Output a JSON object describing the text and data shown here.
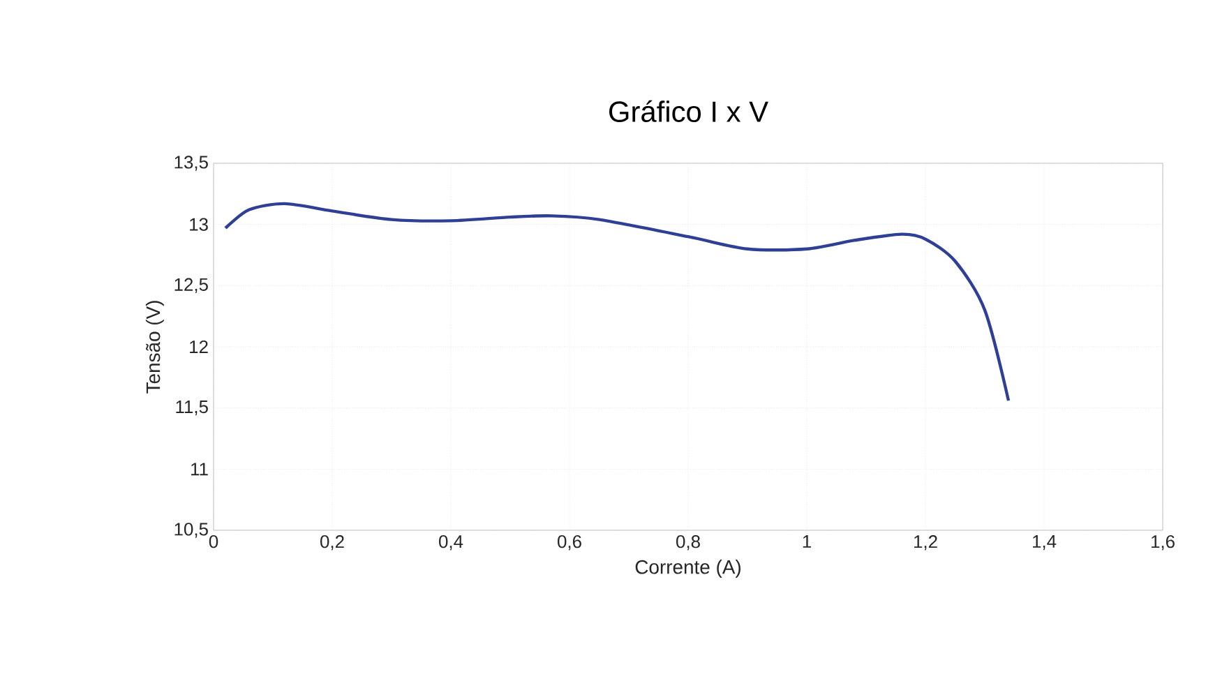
{
  "chart_data": {
    "type": "line",
    "title": "Gráfico  I x V",
    "xlabel": "Corrente (A)",
    "ylabel": "Tensão (V)",
    "series": [
      {
        "color": "#2e3f96",
        "x": [
          0.02,
          0.06,
          0.12,
          0.2,
          0.3,
          0.4,
          0.5,
          0.57,
          0.65,
          0.8,
          0.9,
          1.0,
          1.08,
          1.16,
          1.2,
          1.25,
          1.3,
          1.34
        ],
        "values": [
          12.97,
          13.12,
          13.17,
          13.11,
          13.04,
          13.03,
          13.06,
          13.07,
          13.04,
          12.9,
          12.8,
          12.8,
          12.87,
          12.92,
          12.88,
          12.7,
          12.3,
          11.56
        ]
      }
    ],
    "xlim": [
      0,
      1.6
    ],
    "xticks": [
      0,
      {
        "value": 0.2,
        "label": "0,2"
      },
      {
        "value": 0.4,
        "label": "0,4"
      },
      {
        "value": 0.6,
        "label": "0,6"
      },
      {
        "value": 0.8,
        "label": "0,8"
      },
      1,
      {
        "value": 1.2,
        "label": "1,2"
      },
      {
        "value": 1.4,
        "label": "1,4"
      },
      {
        "value": 1.6,
        "label": "1,6"
      }
    ],
    "ylim": [
      10.5,
      13.5
    ],
    "yticks": [
      {
        "value": 10.5,
        "label": "10,5"
      },
      11,
      {
        "value": 11.5,
        "label": "11,5"
      },
      12,
      {
        "value": 12.5,
        "label": "12,5"
      },
      13,
      {
        "value": 13.5,
        "label": "13,5"
      }
    ],
    "grid": true,
    "line_style": "solid",
    "marker": "none"
  }
}
